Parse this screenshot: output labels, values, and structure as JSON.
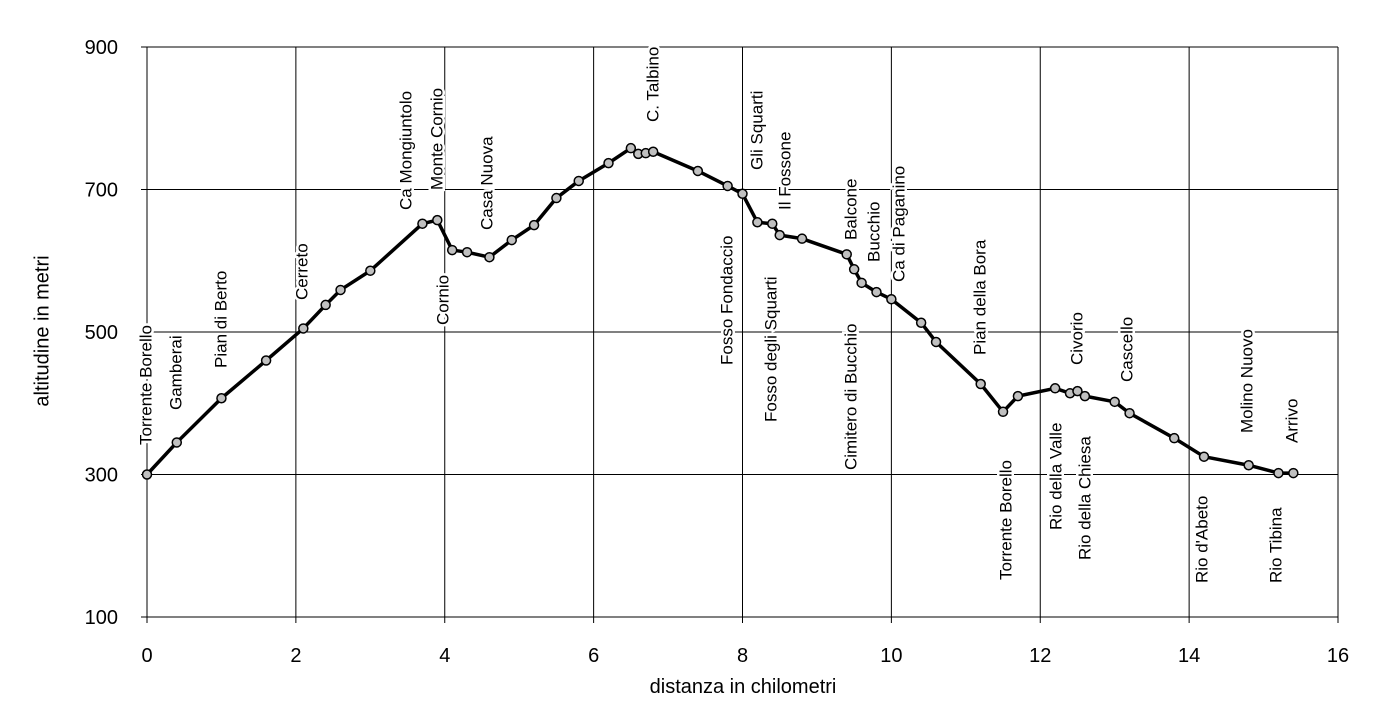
{
  "chart_data": {
    "type": "line",
    "x_label": "distanza in chilometri",
    "y_label": "altitudine  in metri",
    "x": [
      0,
      0.4,
      1.0,
      1.6,
      2.1,
      2.4,
      2.6,
      3.0,
      3.7,
      3.9,
      4.1,
      4.3,
      4.6,
      4.9,
      5.2,
      5.5,
      5.8,
      6.2,
      6.5,
      6.6,
      6.7,
      6.8,
      7.4,
      7.8,
      8.0,
      8.2,
      8.4,
      8.5,
      8.8,
      9.4,
      9.5,
      9.6,
      9.8,
      10.0,
      10.4,
      10.6,
      11.2,
      11.5,
      11.7,
      12.2,
      12.4,
      12.5,
      12.6,
      13.0,
      13.2,
      13.8,
      14.2,
      14.8,
      15.2,
      15.4
    ],
    "series": [
      {
        "color": "#000000",
        "values": [
          300,
          345,
          407,
          460,
          505,
          538,
          559,
          586,
          652,
          657,
          615,
          612,
          605,
          629,
          650,
          688,
          712,
          737,
          758,
          750,
          751,
          753,
          726,
          705,
          694,
          654,
          652,
          636,
          631,
          609,
          588,
          569,
          556,
          546,
          513,
          486,
          427,
          388,
          410,
          421,
          414,
          417,
          410,
          402,
          386,
          351,
          325,
          313,
          302,
          302
        ]
      }
    ],
    "xlim": [
      0,
      16
    ],
    "xticks": [
      0,
      2,
      4,
      6,
      8,
      10,
      12,
      14,
      16
    ],
    "ylim": [
      100,
      900
    ],
    "yticks": [
      100,
      300,
      500,
      700,
      900
    ],
    "grid": true,
    "annotations": [
      "Torrente Borello",
      "Gamberai",
      "Pian di Berto",
      "Cerreto",
      "Ca Mongiuntolo",
      "Monte Cornio",
      "Cornio",
      "Casa Nuova",
      "C. Talbino",
      "Fosso Fondaccio",
      "Gli Squarti",
      "Fosso degli Squarti",
      "Il Fossone",
      "Balcone",
      "Cimitero di Bucchio",
      "Bucchio",
      "Ca di Paganino",
      "Pian della Bora",
      "Torrente Borello",
      "Rio della Valle",
      "Civorio",
      "Rio della Chiesa",
      "Cascello",
      "Rio d'Abeto",
      "Molino Nuovo",
      "Rio Tibina",
      "Arrivo"
    ]
  }
}
